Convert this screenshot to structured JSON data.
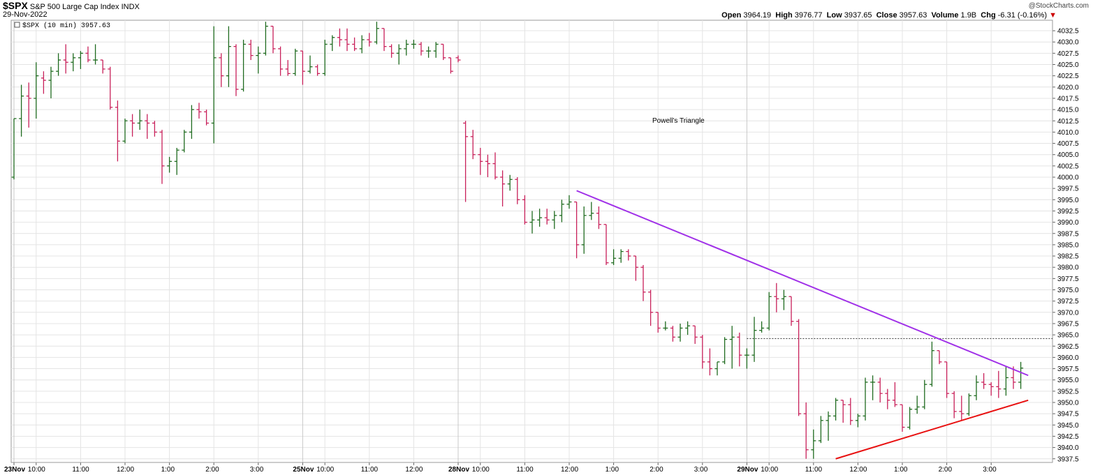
{
  "header": {
    "symbol": "$SPX",
    "name": "S&P 500 Large Cap Index",
    "exchange": "INDX",
    "date": "29-Nov-2022",
    "watermark": "@StockCharts.com",
    "open_label": "Open",
    "open": "3964.19",
    "high_label": "High",
    "high": "3976.77",
    "low_label": "Low",
    "low": "3937.65",
    "close_label": "Close",
    "close": "3957.63",
    "volume_label": "Volume",
    "volume": "1.9B",
    "chg_label": "Chg",
    "chg": "-6.31 (-0.16%)",
    "chg_arrow": "▼"
  },
  "legend": {
    "text": "$SPX (10 min) 3957.63"
  },
  "annotation": {
    "text": "Powell's Triangle",
    "color": "#dd0000"
  },
  "colors": {
    "up": "#1f6b1f",
    "down": "#c8205a",
    "grid": "#e4e4e4",
    "triangle_top": "#a030e8",
    "triangle_bottom": "#e81010"
  },
  "chart_data": {
    "type": "ohlc",
    "interval": "10 min",
    "ylim": [
      3935,
      4035
    ],
    "ticks": [
      "4032.5",
      "4030.0",
      "4027.5",
      "4025.0",
      "4022.5",
      "4020.0",
      "4017.5",
      "4015.0",
      "4012.5",
      "4010.0",
      "4007.5",
      "4005.0",
      "4002.5",
      "4000.0",
      "3997.5",
      "3995.0",
      "3992.5",
      "3990.0",
      "3987.5",
      "3985.0",
      "3982.5",
      "3980.0",
      "3977.5",
      "3975.0",
      "3972.5",
      "3970.0",
      "3967.5",
      "3965.0",
      "3962.5",
      "3960.0",
      "3957.5",
      "3955.0",
      "3952.5",
      "3950.0",
      "3947.5",
      "3945.0",
      "3942.5",
      "3940.0",
      "3937.5"
    ],
    "x_labels": [
      {
        "text": "23Nov",
        "bold": true,
        "bar": 0
      },
      {
        "text": "10:00",
        "bold": false,
        "bar": 3
      },
      {
        "text": "11:00",
        "bold": false,
        "bar": 9
      },
      {
        "text": "12:00",
        "bold": false,
        "bar": 15
      },
      {
        "text": "1:00",
        "bold": false,
        "bar": 21
      },
      {
        "text": "2:00",
        "bold": false,
        "bar": 27
      },
      {
        "text": "3:00",
        "bold": false,
        "bar": 33
      },
      {
        "text": "25Nov",
        "bold": true,
        "bar": 39
      },
      {
        "text": "10:00",
        "bold": false,
        "bar": 42
      },
      {
        "text": "11:00",
        "bold": false,
        "bar": 48
      },
      {
        "text": "12:00",
        "bold": false,
        "bar": 54
      },
      {
        "text": "28Nov",
        "bold": true,
        "bar": 60
      },
      {
        "text": "10:00",
        "bold": false,
        "bar": 63
      },
      {
        "text": "11:00",
        "bold": false,
        "bar": 69
      },
      {
        "text": "12:00",
        "bold": false,
        "bar": 75
      },
      {
        "text": "1:00",
        "bold": false,
        "bar": 81
      },
      {
        "text": "2:00",
        "bold": false,
        "bar": 87
      },
      {
        "text": "3:00",
        "bold": false,
        "bar": 93
      },
      {
        "text": "29Nov",
        "bold": true,
        "bar": 99
      },
      {
        "text": "10:00",
        "bold": false,
        "bar": 102
      },
      {
        "text": "11:00",
        "bold": false,
        "bar": 108
      },
      {
        "text": "12:00",
        "bold": false,
        "bar": 114
      },
      {
        "text": "1:00",
        "bold": false,
        "bar": 120
      },
      {
        "text": "2:00",
        "bold": false,
        "bar": 126
      },
      {
        "text": "3:00",
        "bold": false,
        "bar": 132
      }
    ],
    "day_separators": [
      39,
      60,
      99
    ],
    "bars": [
      {
        "o": 4000.0,
        "h": 4013.0,
        "l": 3999.5,
        "c": 4013.0
      },
      {
        "o": 4013.0,
        "h": 4020.5,
        "l": 4009.0,
        "c": 4018.0
      },
      {
        "o": 4018.0,
        "h": 4021.0,
        "l": 4011.0,
        "c": 4017.5
      },
      {
        "o": 4017.5,
        "h": 4025.5,
        "l": 4013.0,
        "c": 4022.5
      },
      {
        "o": 4022.0,
        "h": 4023.5,
        "l": 4018.5,
        "c": 4021.5
      },
      {
        "o": 4021.5,
        "h": 4024.5,
        "l": 4017.5,
        "c": 4023.5
      },
      {
        "o": 4023.5,
        "h": 4027.5,
        "l": 4022.5,
        "c": 4026.0
      },
      {
        "o": 4026.0,
        "h": 4029.5,
        "l": 4023.0,
        "c": 4025.5
      },
      {
        "o": 4025.5,
        "h": 4027.5,
        "l": 4023.5,
        "c": 4026.5
      },
      {
        "o": 4026.5,
        "h": 4028.0,
        "l": 4024.0,
        "c": 4027.5
      },
      {
        "o": 4027.5,
        "h": 4029.0,
        "l": 4025.5,
        "c": 4026.0
      },
      {
        "o": 4026.0,
        "h": 4029.5,
        "l": 4025.0,
        "c": 4026.0
      },
      {
        "o": 4026.0,
        "h": 4026.0,
        "l": 4023.0,
        "c": 4024.0
      },
      {
        "o": 4024.0,
        "h": 4024.5,
        "l": 4015.0,
        "c": 4015.5
      },
      {
        "o": 4015.5,
        "h": 4017.0,
        "l": 4003.5,
        "c": 4008.0
      },
      {
        "o": 4008.0,
        "h": 4013.0,
        "l": 4007.5,
        "c": 4012.5
      },
      {
        "o": 4012.5,
        "h": 4014.0,
        "l": 4009.0,
        "c": 4012.0
      },
      {
        "o": 4012.0,
        "h": 4015.0,
        "l": 4010.5,
        "c": 4012.5
      },
      {
        "o": 4012.5,
        "h": 4014.0,
        "l": 4008.5,
        "c": 4012.0
      },
      {
        "o": 4012.0,
        "h": 4012.5,
        "l": 4009.0,
        "c": 4010.0
      },
      {
        "o": 4010.0,
        "h": 4010.5,
        "l": 3998.5,
        "c": 4002.5
      },
      {
        "o": 4002.5,
        "h": 4004.5,
        "l": 4001.0,
        "c": 4003.5
      },
      {
        "o": 4003.5,
        "h": 4006.5,
        "l": 4000.5,
        "c": 4006.0
      },
      {
        "o": 4006.0,
        "h": 4010.5,
        "l": 4005.5,
        "c": 4010.0
      },
      {
        "o": 4010.0,
        "h": 4016.0,
        "l": 4008.5,
        "c": 4015.0
      },
      {
        "o": 4015.0,
        "h": 4016.5,
        "l": 4013.0,
        "c": 4014.5
      },
      {
        "o": 4014.5,
        "h": 4015.0,
        "l": 4011.5,
        "c": 4012.0
      },
      {
        "o": 4012.0,
        "h": 4033.5,
        "l": 4007.5,
        "c": 4026.5
      },
      {
        "o": 4026.5,
        "h": 4027.5,
        "l": 4020.0,
        "c": 4022.5
      },
      {
        "o": 4022.5,
        "h": 4033.5,
        "l": 4020.0,
        "c": 4029.0
      },
      {
        "o": 4029.0,
        "h": 4029.5,
        "l": 4018.0,
        "c": 4019.5
      },
      {
        "o": 4019.5,
        "h": 4030.5,
        "l": 4019.0,
        "c": 4029.5
      },
      {
        "o": 4029.5,
        "h": 4030.5,
        "l": 4026.0,
        "c": 4027.0
      },
      {
        "o": 4027.0,
        "h": 4029.0,
        "l": 4023.0,
        "c": 4027.5
      },
      {
        "o": 4027.5,
        "h": 4034.5,
        "l": 4027.0,
        "c": 4033.5
      },
      {
        "o": 4033.5,
        "h": 4033.5,
        "l": 4027.5,
        "c": 4028.5
      },
      {
        "o": 4028.5,
        "h": 4029.0,
        "l": 4022.5,
        "c": 4024.0
      },
      {
        "o": 4024.0,
        "h": 4026.0,
        "l": 4022.5,
        "c": 4023.0
      },
      {
        "o": 4023.0,
        "h": 4028.5,
        "l": 4022.5,
        "c": 4028.0
      },
      {
        "o": 4028.0,
        "h": 4028.0,
        "l": 4020.5,
        "c": 4023.5
      },
      {
        "o": 4023.5,
        "h": 4027.0,
        "l": 4023.0,
        "c": 4024.5
      },
      {
        "o": 4024.5,
        "h": 4025.0,
        "l": 4022.5,
        "c": 4023.0
      },
      {
        "o": 4023.0,
        "h": 4030.5,
        "l": 4022.5,
        "c": 4029.5
      },
      {
        "o": 4029.5,
        "h": 4031.5,
        "l": 4028.0,
        "c": 4031.0
      },
      {
        "o": 4031.0,
        "h": 4033.0,
        "l": 4029.0,
        "c": 4030.5
      },
      {
        "o": 4030.5,
        "h": 4033.0,
        "l": 4028.0,
        "c": 4029.5
      },
      {
        "o": 4029.5,
        "h": 4031.0,
        "l": 4028.0,
        "c": 4028.5
      },
      {
        "o": 4028.5,
        "h": 4031.5,
        "l": 4027.5,
        "c": 4030.5
      },
      {
        "o": 4030.5,
        "h": 4032.0,
        "l": 4029.0,
        "c": 4030.0
      },
      {
        "o": 4030.0,
        "h": 4034.5,
        "l": 4029.5,
        "c": 4033.0
      },
      {
        "o": 4033.0,
        "h": 4033.0,
        "l": 4028.0,
        "c": 4029.0
      },
      {
        "o": 4029.0,
        "h": 4029.5,
        "l": 4026.5,
        "c": 4027.5
      },
      {
        "o": 4027.5,
        "h": 4029.5,
        "l": 4025.0,
        "c": 4028.5
      },
      {
        "o": 4028.5,
        "h": 4030.5,
        "l": 4027.0,
        "c": 4029.5
      },
      {
        "o": 4029.5,
        "h": 4030.5,
        "l": 4028.5,
        "c": 4029.5
      },
      {
        "o": 4029.5,
        "h": 4030.0,
        "l": 4027.0,
        "c": 4028.0
      },
      {
        "o": 4028.0,
        "h": 4029.0,
        "l": 4026.5,
        "c": 4028.0
      },
      {
        "o": 4028.0,
        "h": 4030.0,
        "l": 4026.5,
        "c": 4029.5
      },
      {
        "o": 4029.5,
        "h": 4029.5,
        "l": 4026.0,
        "c": 4026.5
      },
      {
        "o": 4026.5,
        "h": 4026.5,
        "l": 4023.0,
        "c": 4023.5
      },
      {
        "o": 4026.5,
        "h": 4027.0,
        "l": 4025.5,
        "c": 4026.0
      },
      {
        "o": 4012.0,
        "h": 4012.5,
        "l": 3994.5,
        "c": 4009.0
      },
      {
        "o": 4009.0,
        "h": 4010.5,
        "l": 4004.0,
        "c": 4005.0
      },
      {
        "o": 4005.0,
        "h": 4006.5,
        "l": 4000.5,
        "c": 4003.5
      },
      {
        "o": 4003.5,
        "h": 4005.0,
        "l": 4000.0,
        "c": 4003.0
      },
      {
        "o": 4003.0,
        "h": 4005.5,
        "l": 3999.5,
        "c": 4000.0
      },
      {
        "o": 4000.0,
        "h": 4001.5,
        "l": 3993.5,
        "c": 3998.5
      },
      {
        "o": 3998.5,
        "h": 4000.5,
        "l": 3997.0,
        "c": 3999.5
      },
      {
        "o": 3999.5,
        "h": 4000.0,
        "l": 3994.0,
        "c": 3995.0
      },
      {
        "o": 3995.0,
        "h": 3996.0,
        "l": 3989.5,
        "c": 3990.0
      },
      {
        "o": 3990.0,
        "h": 3992.5,
        "l": 3987.5,
        "c": 3990.5
      },
      {
        "o": 3990.5,
        "h": 3993.0,
        "l": 3989.0,
        "c": 3991.0
      },
      {
        "o": 3991.0,
        "h": 3993.0,
        "l": 3989.5,
        "c": 3990.5
      },
      {
        "o": 3990.5,
        "h": 3992.5,
        "l": 3988.5,
        "c": 3991.5
      },
      {
        "o": 3991.5,
        "h": 3995.0,
        "l": 3990.0,
        "c": 3994.0
      },
      {
        "o": 3994.0,
        "h": 3996.0,
        "l": 3993.0,
        "c": 3994.5
      },
      {
        "o": 3994.5,
        "h": 3994.5,
        "l": 3982.0,
        "c": 3985.0
      },
      {
        "o": 3985.0,
        "h": 3993.5,
        "l": 3983.0,
        "c": 3991.5
      },
      {
        "o": 3991.5,
        "h": 3994.5,
        "l": 3990.5,
        "c": 3992.0
      },
      {
        "o": 3992.0,
        "h": 3993.5,
        "l": 3988.5,
        "c": 3989.5
      },
      {
        "o": 3989.5,
        "h": 3989.5,
        "l": 3980.5,
        "c": 3981.0
      },
      {
        "o": 3981.0,
        "h": 3984.0,
        "l": 3980.5,
        "c": 3982.0
      },
      {
        "o": 3982.0,
        "h": 3984.0,
        "l": 3981.0,
        "c": 3983.5
      },
      {
        "o": 3983.5,
        "h": 3984.0,
        "l": 3981.5,
        "c": 3982.5
      },
      {
        "o": 3982.5,
        "h": 3982.5,
        "l": 3977.0,
        "c": 3980.0
      },
      {
        "o": 3980.0,
        "h": 3980.5,
        "l": 3972.5,
        "c": 3974.5
      },
      {
        "o": 3974.5,
        "h": 3975.0,
        "l": 3967.0,
        "c": 3970.0
      },
      {
        "o": 3970.0,
        "h": 3970.0,
        "l": 3965.5,
        "c": 3966.5
      },
      {
        "o": 3966.5,
        "h": 3968.0,
        "l": 3966.0,
        "c": 3966.5
      },
      {
        "o": 3966.5,
        "h": 3967.0,
        "l": 3963.5,
        "c": 3964.5
      },
      {
        "o": 3964.5,
        "h": 3967.5,
        "l": 3963.5,
        "c": 3966.5
      },
      {
        "o": 3966.5,
        "h": 3968.0,
        "l": 3965.0,
        "c": 3967.0
      },
      {
        "o": 3967.0,
        "h": 3967.0,
        "l": 3963.0,
        "c": 3964.5
      },
      {
        "o": 3964.5,
        "h": 3965.0,
        "l": 3957.5,
        "c": 3959.0
      },
      {
        "o": 3959.0,
        "h": 3962.0,
        "l": 3956.0,
        "c": 3957.5
      },
      {
        "o": 3957.5,
        "h": 3959.0,
        "l": 3956.0,
        "c": 3959.0
      },
      {
        "o": 3959.0,
        "h": 3964.5,
        "l": 3958.5,
        "c": 3964.0
      },
      {
        "o": 3964.0,
        "h": 3967.0,
        "l": 3957.5,
        "c": 3964.5
      },
      {
        "o": 3964.5,
        "h": 3965.5,
        "l": 3958.0,
        "c": 3960.5
      },
      {
        "o": 3960.5,
        "h": 3962.0,
        "l": 3957.5,
        "c": 3960.5
      },
      {
        "o": 3960.5,
        "h": 3969.0,
        "l": 3959.0,
        "c": 3966.0
      },
      {
        "o": 3966.0,
        "h": 3968.0,
        "l": 3965.5,
        "c": 3966.5
      },
      {
        "o": 3966.5,
        "h": 3974.5,
        "l": 3966.0,
        "c": 3973.5
      },
      {
        "o": 3973.5,
        "h": 3976.5,
        "l": 3970.0,
        "c": 3973.0
      },
      {
        "o": 3973.0,
        "h": 3975.0,
        "l": 3970.5,
        "c": 3973.5
      },
      {
        "o": 3973.5,
        "h": 3973.5,
        "l": 3967.0,
        "c": 3968.0
      },
      {
        "o": 3968.0,
        "h": 3968.5,
        "l": 3947.0,
        "c": 3947.5
      },
      {
        "o": 3947.5,
        "h": 3950.0,
        "l": 3937.5,
        "c": 3939.5
      },
      {
        "o": 3939.5,
        "h": 3944.0,
        "l": 3937.5,
        "c": 3941.5
      },
      {
        "o": 3941.5,
        "h": 3947.0,
        "l": 3941.0,
        "c": 3946.0
      },
      {
        "o": 3946.0,
        "h": 3948.0,
        "l": 3941.5,
        "c": 3947.0
      },
      {
        "o": 3947.0,
        "h": 3951.0,
        "l": 3946.0,
        "c": 3950.5
      },
      {
        "o": 3950.5,
        "h": 3950.5,
        "l": 3945.5,
        "c": 3949.5
      },
      {
        "o": 3949.5,
        "h": 3951.0,
        "l": 3945.0,
        "c": 3946.0
      },
      {
        "o": 3946.0,
        "h": 3947.5,
        "l": 3944.5,
        "c": 3947.0
      },
      {
        "o": 3947.0,
        "h": 3955.5,
        "l": 3946.0,
        "c": 3954.5
      },
      {
        "o": 3954.5,
        "h": 3956.0,
        "l": 3950.5,
        "c": 3954.5
      },
      {
        "o": 3954.5,
        "h": 3955.5,
        "l": 3950.0,
        "c": 3952.0
      },
      {
        "o": 3952.0,
        "h": 3953.0,
        "l": 3948.5,
        "c": 3950.5
      },
      {
        "o": 3950.5,
        "h": 3954.5,
        "l": 3949.0,
        "c": 3949.5
      },
      {
        "o": 3949.5,
        "h": 3949.5,
        "l": 3943.5,
        "c": 3944.5
      },
      {
        "o": 3944.5,
        "h": 3949.0,
        "l": 3944.0,
        "c": 3948.5
      },
      {
        "o": 3948.5,
        "h": 3951.5,
        "l": 3947.5,
        "c": 3949.0
      },
      {
        "o": 3949.0,
        "h": 3955.0,
        "l": 3948.5,
        "c": 3954.0
      },
      {
        "o": 3954.0,
        "h": 3963.5,
        "l": 3953.5,
        "c": 3961.5
      },
      {
        "o": 3961.5,
        "h": 3961.5,
        "l": 3958.5,
        "c": 3959.0
      },
      {
        "o": 3959.0,
        "h": 3959.0,
        "l": 3951.0,
        "c": 3952.0
      },
      {
        "o": 3952.0,
        "h": 3952.5,
        "l": 3946.5,
        "c": 3948.0
      },
      {
        "o": 3948.0,
        "h": 3951.5,
        "l": 3946.0,
        "c": 3947.5
      },
      {
        "o": 3947.5,
        "h": 3952.0,
        "l": 3947.0,
        "c": 3951.5
      },
      {
        "o": 3951.5,
        "h": 3956.0,
        "l": 3950.5,
        "c": 3954.5
      },
      {
        "o": 3954.5,
        "h": 3956.5,
        "l": 3953.0,
        "c": 3954.0
      },
      {
        "o": 3954.0,
        "h": 3954.5,
        "l": 3951.5,
        "c": 3953.5
      },
      {
        "o": 3953.5,
        "h": 3957.0,
        "l": 3951.0,
        "c": 3953.0
      },
      {
        "o": 3953.0,
        "h": 3958.0,
        "l": 3951.5,
        "c": 3955.5
      },
      {
        "o": 3955.5,
        "h": 3958.0,
        "l": 3953.0,
        "c": 3954.5
      },
      {
        "o": 3954.5,
        "h": 3959.0,
        "l": 3953.0,
        "c": 3957.63
      }
    ],
    "trendlines": [
      {
        "name": "upper",
        "color": "#a030e8",
        "from": {
          "bar": 76,
          "price": 3997.0
        },
        "to": {
          "bar": 137,
          "price": 3956.0
        }
      },
      {
        "name": "lower",
        "color": "#e81010",
        "from": {
          "bar": 111,
          "price": 3937.5
        },
        "to": {
          "bar": 137,
          "price": 3950.5
        }
      }
    ],
    "reference_line": {
      "price": 3964.19,
      "from_bar": 99
    }
  }
}
